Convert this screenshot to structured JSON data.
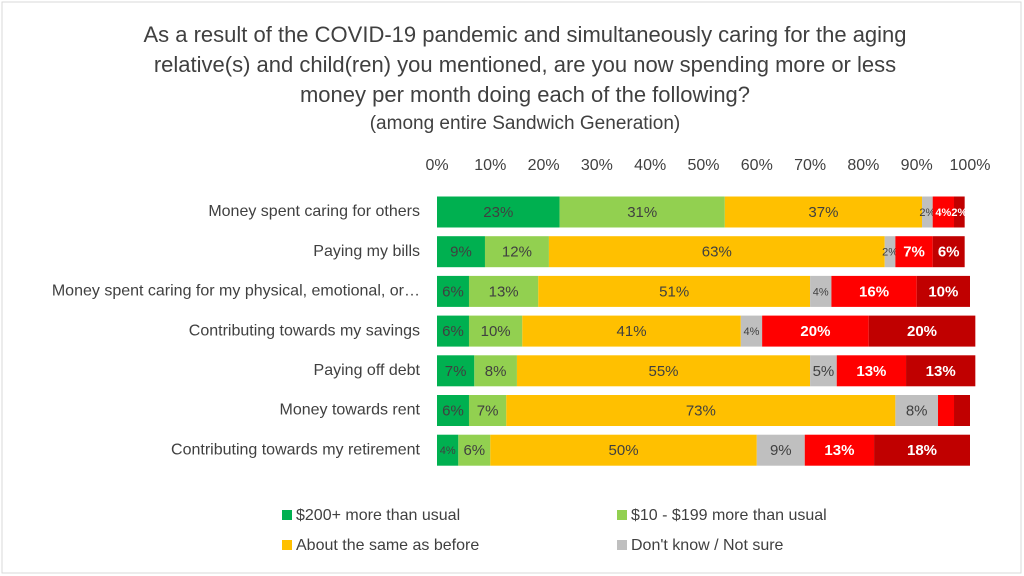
{
  "chart_data": {
    "type": "stacked-bar-horizontal",
    "title": "As a result of the COVID-19 pandemic and simultaneously caring for the aging relative(s) and child(ren) you mentioned, are you now spending more or less money per month doing each of the following?",
    "subtitle": "(among entire Sandwich Generation)",
    "categories": [
      "Money spent caring for others",
      "Paying my bills",
      "Money spent caring for my physical, emotional, or…",
      "Contributing towards my savings",
      "Paying off debt",
      "Money towards rent",
      "Contributing towards my retirement"
    ],
    "xlim": [
      0,
      100
    ],
    "xticks": [
      {
        "value": 0,
        "label": "0%"
      },
      {
        "value": 10,
        "label": "10%"
      },
      {
        "value": 20,
        "label": "20%"
      },
      {
        "value": 30,
        "label": "30%"
      },
      {
        "value": 40,
        "label": "40%"
      },
      {
        "value": 50,
        "label": "50%"
      },
      {
        "value": 60,
        "label": "60%"
      },
      {
        "value": 70,
        "label": "70%"
      },
      {
        "value": 80,
        "label": "80%"
      },
      {
        "value": 90,
        "label": "90%"
      },
      {
        "value": 100,
        "label": "100%"
      }
    ],
    "series": [
      {
        "name": "$200+ more than usual",
        "color": "#00b050",
        "values": [
          23,
          9,
          6,
          6,
          7,
          6,
          4
        ],
        "value_labels": [
          "23%",
          "9%",
          "6%",
          "6%",
          "7%",
          "6%",
          "4%"
        ]
      },
      {
        "name": "$10 - $199 more than usual",
        "color": "#92d050",
        "values": [
          31,
          12,
          13,
          10,
          8,
          7,
          6
        ],
        "value_labels": [
          "31%",
          "12%",
          "13%",
          "10%",
          "8%",
          "7%",
          "6%"
        ]
      },
      {
        "name": "About the same as before",
        "color": "#ffc000",
        "values": [
          37,
          63,
          51,
          41,
          55,
          73,
          50
        ],
        "value_labels": [
          "37%",
          "63%",
          "51%",
          "41%",
          "55%",
          "73%",
          "50%"
        ]
      },
      {
        "name": "Don't know / Not sure",
        "color": "#bfbfbf",
        "values": [
          2,
          2,
          4,
          4,
          5,
          8,
          9
        ],
        "value_labels": [
          "2%",
          "2%",
          "4%",
          "4%",
          "5%",
          "8%",
          "9%"
        ]
      },
      {
        "color": "#ff0000",
        "values": [
          4,
          7,
          16,
          20,
          13,
          3,
          13
        ],
        "value_labels": [
          "4%",
          "7%",
          "16%",
          "20%",
          "13%",
          null,
          "13%"
        ]
      },
      {
        "color": "#c00000",
        "values": [
          2,
          6,
          10,
          20,
          13,
          3,
          18
        ],
        "value_labels": [
          "2%",
          "6%",
          "10%",
          "20%",
          "13%",
          null,
          "18%"
        ]
      }
    ]
  }
}
